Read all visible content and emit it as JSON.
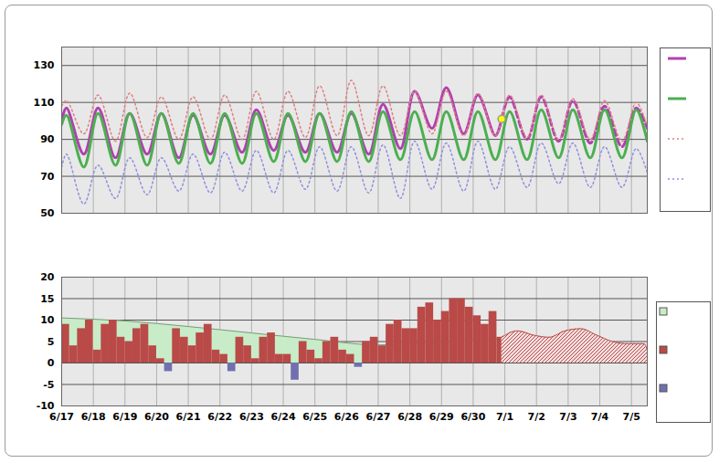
{
  "chart_data": [
    {
      "type": "line",
      "xlim": [
        0,
        18.5
      ],
      "xticks": [
        {
          "value": 0,
          "label": "6/17"
        },
        {
          "value": 1,
          "label": "6/18"
        },
        {
          "value": 2,
          "label": "6/19"
        },
        {
          "value": 3,
          "label": "6/20"
        },
        {
          "value": 4,
          "label": "6/21"
        },
        {
          "value": 5,
          "label": "6/22"
        },
        {
          "value": 6,
          "label": "6/23"
        },
        {
          "value": 7,
          "label": "6/24"
        },
        {
          "value": 8,
          "label": "6/25"
        },
        {
          "value": 9,
          "label": "6/26"
        },
        {
          "value": 10,
          "label": "6/27"
        },
        {
          "value": 11,
          "label": "6/28"
        },
        {
          "value": 12,
          "label": "6/29"
        },
        {
          "value": 13,
          "label": "6/30"
        },
        {
          "value": 14,
          "label": "7/1"
        },
        {
          "value": 15,
          "label": "7/2"
        },
        {
          "value": 16,
          "label": "7/3"
        },
        {
          "value": 17,
          "label": "7/4"
        },
        {
          "value": 18,
          "label": "7/5"
        }
      ],
      "ylim": [
        50,
        140
      ],
      "yticks": [
        50,
        70,
        90,
        110,
        130
      ],
      "grid": true,
      "legend": "right",
      "tick_labels": "y",
      "series": [
        {
          "type": "line",
          "color": "#b040b0",
          "line_style": "solid",
          "x": [
            0,
            0.15,
            0.7,
            1.15,
            1.7,
            2.15,
            2.7,
            3.15,
            3.7,
            4.15,
            4.7,
            5.15,
            5.7,
            6.15,
            6.7,
            7.15,
            7.7,
            8.15,
            8.7,
            9.15,
            9.7,
            10.15,
            10.7,
            11.15,
            11.7,
            12.15,
            12.7,
            13.15,
            13.7,
            13.9
          ],
          "values": [
            100,
            107,
            82,
            107,
            80,
            104,
            82,
            104,
            80,
            103,
            82,
            103,
            83,
            106,
            84,
            103,
            83,
            104,
            83,
            104,
            82,
            109,
            85,
            116,
            96,
            118,
            93,
            114,
            92,
            101
          ]
        },
        {
          "type": "line",
          "color": "#b040b0",
          "line_style": "dashed",
          "x": [
            13.9,
            14.15,
            14.7,
            15.15,
            15.7,
            16.15,
            16.7,
            17.15,
            17.7,
            18.15,
            18.5
          ],
          "values": [
            101,
            113,
            90,
            113,
            89,
            111,
            88,
            108,
            86,
            107,
            96
          ]
        },
        {
          "type": "line",
          "color": "#4caf50",
          "line_style": "solid",
          "x": [
            0,
            0.15,
            0.7,
            1.15,
            1.7,
            2.15,
            2.7,
            3.15,
            3.7,
            4.15,
            4.7,
            5.15,
            5.7,
            6.15,
            6.7,
            7.15,
            7.7,
            8.15,
            8.7,
            9.15,
            9.7,
            10.15,
            10.7,
            11.15,
            11.7,
            12.15,
            12.7,
            13.15,
            13.7,
            14.15,
            14.7,
            15.15,
            15.7,
            16.15,
            16.7,
            17.15,
            17.7,
            18.15,
            18.5
          ],
          "values": [
            98,
            103,
            75,
            104,
            76,
            104,
            76,
            104,
            77,
            104,
            77,
            104,
            77,
            104,
            78,
            104,
            78,
            104,
            78,
            105,
            78,
            105,
            79,
            105,
            79,
            105,
            79,
            105,
            79,
            105,
            79,
            106,
            80,
            106,
            80,
            106,
            80,
            106,
            89
          ]
        },
        {
          "type": "line",
          "color": "#e08080",
          "line_style": "dotted",
          "x": [
            0,
            0.15,
            0.7,
            1.15,
            1.7,
            2.15,
            2.7,
            3.15,
            3.7,
            4.15,
            4.7,
            5.15,
            5.7,
            6.15,
            6.7,
            7.15,
            7.7,
            8.15,
            8.7,
            9.15,
            9.7,
            10.15,
            10.7,
            11.15,
            11.7,
            12.15,
            12.7,
            13.15,
            13.7,
            14.15,
            14.7,
            15.15,
            15.7,
            16.15,
            16.7,
            17.15,
            17.7,
            18.15,
            18.5
          ],
          "values": [
            108,
            111,
            93,
            114,
            89,
            115,
            91,
            113,
            90,
            113,
            90,
            114,
            90,
            116,
            90,
            116,
            91,
            119,
            92,
            122,
            92,
            119,
            92,
            116,
            93,
            116,
            92,
            115,
            92,
            114,
            91,
            114,
            90,
            112,
            90,
            111,
            89,
            110,
            97
          ]
        },
        {
          "type": "line",
          "color": "#9090e0",
          "line_style": "dotted",
          "x": [
            0,
            0.15,
            0.7,
            1.15,
            1.7,
            2.15,
            2.7,
            3.15,
            3.7,
            4.15,
            4.7,
            5.15,
            5.7,
            6.15,
            6.7,
            7.15,
            7.7,
            8.15,
            8.7,
            9.15,
            9.7,
            10.15,
            10.7,
            11.15,
            11.7,
            12.15,
            12.7,
            13.15,
            13.7,
            14.15,
            14.7,
            15.15,
            15.7,
            16.15,
            16.7,
            17.15,
            17.7,
            18.15,
            18.5
          ],
          "values": [
            75,
            82,
            55,
            76,
            58,
            80,
            60,
            80,
            62,
            82,
            61,
            83,
            62,
            84,
            61,
            84,
            63,
            86,
            62,
            86,
            61,
            87,
            58,
            89,
            63,
            88,
            62,
            89,
            63,
            86,
            64,
            88,
            66,
            88,
            64,
            86,
            64,
            85,
            72
          ]
        },
        {
          "type": "scatter",
          "color": "#ffff00",
          "marker": "circle",
          "x": [
            13.9
          ],
          "values": [
            101
          ]
        }
      ]
    },
    {
      "type": "area",
      "xlim": [
        0,
        18.5
      ],
      "xticks": [
        {
          "value": 0,
          "label": "6/17"
        },
        {
          "value": 1,
          "label": "6/18"
        },
        {
          "value": 2,
          "label": "6/19"
        },
        {
          "value": 3,
          "label": "6/20"
        },
        {
          "value": 4,
          "label": "6/21"
        },
        {
          "value": 5,
          "label": "6/22"
        },
        {
          "value": 6,
          "label": "6/23"
        },
        {
          "value": 7,
          "label": "6/24"
        },
        {
          "value": 8,
          "label": "6/25"
        },
        {
          "value": 9,
          "label": "6/26"
        },
        {
          "value": 10,
          "label": "6/27"
        },
        {
          "value": 11,
          "label": "6/28"
        },
        {
          "value": 12,
          "label": "6/29"
        },
        {
          "value": 13,
          "label": "6/30"
        },
        {
          "value": 14,
          "label": "7/1"
        },
        {
          "value": 15,
          "label": "7/2"
        },
        {
          "value": 16,
          "label": "7/3"
        },
        {
          "value": 17,
          "label": "7/4"
        },
        {
          "value": 18,
          "label": "7/5"
        }
      ],
      "ylim": [
        -10,
        20
      ],
      "yticks": [
        -10,
        -5,
        0,
        5,
        10,
        15,
        20
      ],
      "grid": true,
      "legend": "right",
      "series": [
        {
          "type": "area",
          "color": "#c8ecc8",
          "x": [
            0,
            2,
            4,
            6,
            8,
            10,
            12,
            13.9
          ],
          "values": [
            10.5,
            9.8,
            8.5,
            7,
            5.5,
            4.2,
            5,
            5.6
          ]
        },
        {
          "type": "bar",
          "color": "#b94a48",
          "x": [
            0,
            0.25,
            0.5,
            0.75,
            1,
            1.25,
            1.5,
            1.75,
            2,
            2.25,
            2.5,
            2.75,
            3,
            3.25,
            3.5,
            3.75,
            4,
            4.25,
            4.5,
            4.75,
            5,
            5.25,
            5.5,
            5.75,
            6,
            6.25,
            6.5,
            6.75,
            7,
            7.25,
            7.5,
            7.75,
            8,
            8.25,
            8.5,
            8.75,
            9,
            9.25,
            9.5,
            9.75,
            10,
            10.25,
            10.5,
            10.75,
            11,
            11.25,
            11.5,
            11.75,
            12,
            12.25,
            12.5,
            12.75,
            13,
            13.25,
            13.5,
            13.75
          ],
          "values": [
            9,
            4,
            8,
            10,
            3,
            9,
            10,
            6,
            5,
            8,
            9,
            4,
            1,
            -2,
            8,
            6,
            4,
            7,
            9,
            3,
            2,
            -2,
            6,
            4,
            1,
            6,
            7,
            2,
            2,
            -4,
            5,
            3,
            1,
            5,
            6,
            3,
            2,
            -1,
            5,
            6,
            4,
            9,
            10,
            8,
            8,
            13,
            14,
            10,
            12,
            15,
            15,
            13,
            11,
            9,
            12,
            6
          ],
          "colors": [
            "#b94a48",
            "#b94a48",
            "#b94a48",
            "#b94a48",
            "#b94a48",
            "#b94a48",
            "#b94a48",
            "#b94a48",
            "#b94a48",
            "#b94a48",
            "#b94a48",
            "#b94a48",
            "#b94a48",
            "#7070b0",
            "#b94a48",
            "#b94a48",
            "#b94a48",
            "#b94a48",
            "#b94a48",
            "#b94a48",
            "#b94a48",
            "#7070b0",
            "#b94a48",
            "#b94a48",
            "#b94a48",
            "#b94a48",
            "#b94a48",
            "#b94a48",
            "#b94a48",
            "#7070b0",
            "#b94a48",
            "#b94a48",
            "#b94a48",
            "#b94a48",
            "#b94a48",
            "#b94a48",
            "#b94a48",
            "#7070b0",
            "#b94a48",
            "#b94a48",
            "#b94a48",
            "#b94a48",
            "#b94a48",
            "#b94a48",
            "#b94a48",
            "#b94a48",
            "#b94a48",
            "#b94a48",
            "#b94a48",
            "#b94a48",
            "#b94a48",
            "#b94a48",
            "#b94a48",
            "#b94a48",
            "#b94a48",
            "#b94a48"
          ]
        },
        {
          "type": "area",
          "color": "#b94a48",
          "line_style": "hatched",
          "x": [
            13.9,
            14.4,
            14.9,
            15.4,
            15.9,
            16.4,
            16.9,
            17.4,
            17.9,
            18.4,
            18.5
          ],
          "values": [
            6,
            7.5,
            6.5,
            6,
            7.5,
            8,
            6.5,
            5,
            4.5,
            4.5,
            3
          ]
        }
      ]
    }
  ]
}
